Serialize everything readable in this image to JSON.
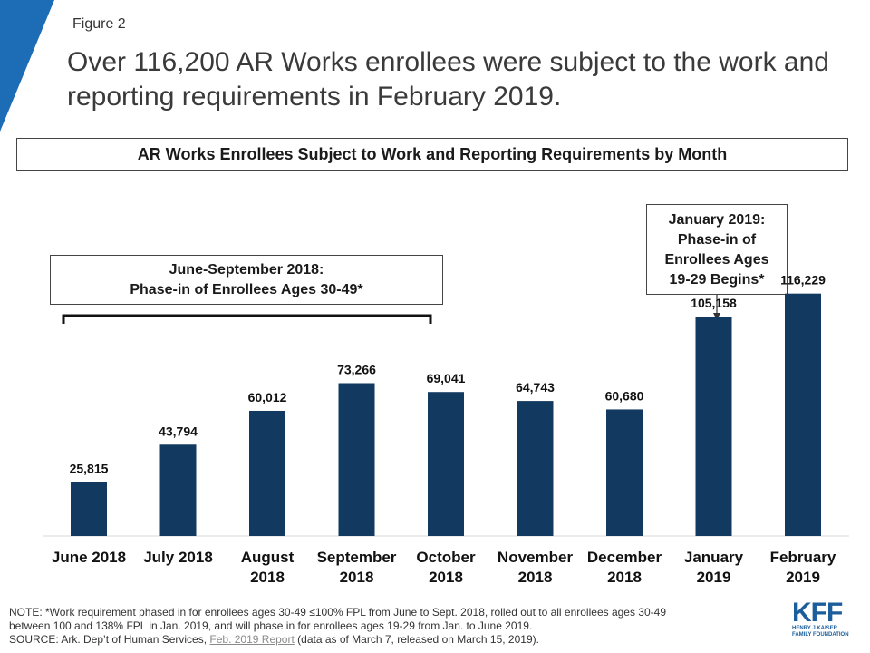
{
  "figure_label": "Figure 2",
  "headline": "Over 116,200 AR Works enrollees were subject to the work and reporting requirements in February 2019.",
  "colors": {
    "bar": "#123a60",
    "accent": "#1c6db6",
    "logo": "#1c5e9c"
  },
  "callouts": {
    "phase1": [
      "June-September 2018:",
      "Phase-in of Enrollees Ages 30-49*"
    ],
    "phase2": [
      "January 2019:",
      "Phase-in of",
      "Enrollees Ages",
      "19-29 Begins*"
    ]
  },
  "chart_data": {
    "type": "bar",
    "title": "AR Works Enrollees Subject to Work and Reporting Requirements by Month",
    "categories": [
      [
        "June 2018"
      ],
      [
        "July 2018"
      ],
      [
        "August",
        "2018"
      ],
      [
        "September",
        "2018"
      ],
      [
        "October",
        "2018"
      ],
      [
        "November",
        "2018"
      ],
      [
        "December",
        "2018"
      ],
      [
        "January",
        "2019"
      ],
      [
        "February",
        "2019"
      ]
    ],
    "values": [
      25815,
      43794,
      60012,
      73266,
      69041,
      64743,
      60680,
      105158,
      116229
    ],
    "value_labels": [
      "25,815",
      "43,794",
      "60,012",
      "73,266",
      "69,041",
      "64,743",
      "60,680",
      "105,158",
      "116,229"
    ],
    "xlabel": "",
    "ylabel": "",
    "ylim": [
      0,
      130000
    ],
    "grid": false,
    "legend": "none"
  },
  "notes": {
    "note_line1": "NOTE: *Work requirement phased in for enrollees ages 30-49 ≤100% FPL from June to Sept. 2018, rolled out to all enrollees ages 30-49",
    "note_line2": "between 100 and 138% FPL in Jan. 2019, and will phase in for enrollees ages 19-29 from Jan. to June 2019.",
    "source_prefix": "SOURCE:  Ark. Dep’t of Human Services, ",
    "source_link": "Feb. 2019 Report",
    "source_suffix": " (data as of March 7, released on March 15, 2019)."
  },
  "logo": {
    "text": "KFF",
    "sub_line1": "HENRY J KAISER",
    "sub_line2": "FAMILY FOUNDATION"
  }
}
